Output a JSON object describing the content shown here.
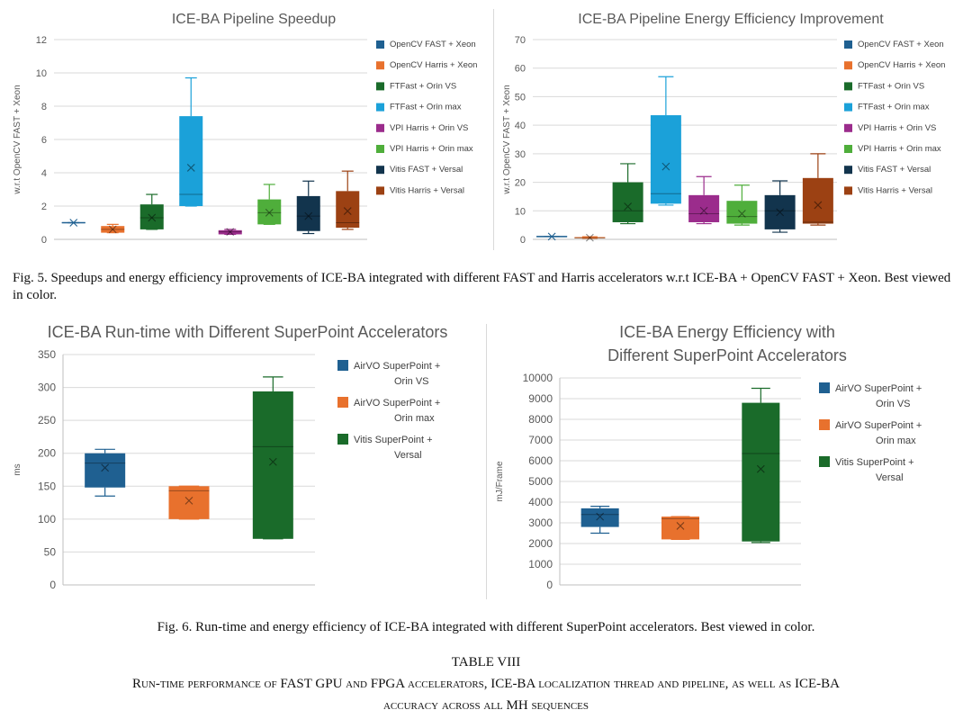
{
  "chart_data": [
    {
      "type": "boxplot",
      "title": "ICE-BA Pipeline Speedup",
      "xlabel": "",
      "ylabel": "w.r.t OpenCV FAST + Xeon",
      "ylim": [
        0,
        12
      ],
      "yticks": [
        0,
        2,
        4,
        6,
        8,
        10,
        12
      ],
      "legend_position": "right",
      "series": [
        {
          "name": "OpenCV FAST + Xeon",
          "color": "#1f6091",
          "min": 1.0,
          "q1": 1.0,
          "median": 1.0,
          "q3": 1.0,
          "max": 1.0,
          "mean": 1.0
        },
        {
          "name": "OpenCV Harris + Xeon",
          "color": "#e8712d",
          "min": 0.4,
          "q1": 0.4,
          "median": 0.6,
          "q3": 0.8,
          "max": 0.9,
          "mean": 0.6
        },
        {
          "name": "FTFast + Orin VS",
          "color": "#1a6b2a",
          "min": 0.6,
          "q1": 0.6,
          "median": 1.3,
          "q3": 2.1,
          "max": 2.7,
          "mean": 1.3
        },
        {
          "name": "FTFast + Orin max",
          "color": "#1ba1d9",
          "min": 2.0,
          "q1": 2.0,
          "median": 2.7,
          "q3": 7.4,
          "max": 9.7,
          "mean": 4.3
        },
        {
          "name": "VPI Harris + Orin VS",
          "color": "#9b2c8c",
          "min": 0.3,
          "q1": 0.3,
          "median": 0.45,
          "q3": 0.55,
          "max": 0.6,
          "mean": 0.45
        },
        {
          "name": "VPI Harris + Orin max",
          "color": "#4fae3b",
          "min": 0.9,
          "q1": 0.9,
          "median": 1.6,
          "q3": 2.4,
          "max": 3.3,
          "mean": 1.6
        },
        {
          "name": "Vitis FAST + Versal",
          "color": "#12344d",
          "min": 0.35,
          "q1": 0.5,
          "median": 1.4,
          "q3": 2.6,
          "max": 3.5,
          "mean": 1.4
        },
        {
          "name": "Vitis Harris + Versal",
          "color": "#9c4113",
          "min": 0.6,
          "q1": 0.7,
          "median": 1.0,
          "q3": 2.9,
          "max": 4.1,
          "mean": 1.7
        }
      ]
    },
    {
      "type": "boxplot",
      "title": "ICE-BA Pipeline Energy Efficiency Improvement",
      "xlabel": "",
      "ylabel": "w.r.t OpenCV FAST + Xeon",
      "ylim": [
        0,
        70
      ],
      "yticks": [
        0,
        10,
        20,
        30,
        40,
        50,
        60,
        70
      ],
      "legend_position": "right",
      "series": [
        {
          "name": "OpenCV FAST + Xeon",
          "color": "#1f6091",
          "min": 1,
          "q1": 1,
          "median": 1,
          "q3": 1,
          "max": 1,
          "mean": 1
        },
        {
          "name": "OpenCV Harris + Xeon",
          "color": "#e8712d",
          "min": 0.4,
          "q1": 0.4,
          "median": 0.5,
          "q3": 0.8,
          "max": 0.9,
          "mean": 0.6
        },
        {
          "name": "FTFast + Orin VS",
          "color": "#1a6b2a",
          "min": 5.5,
          "q1": 6,
          "median": 10,
          "q3": 20,
          "max": 26.5,
          "mean": 11.5
        },
        {
          "name": "FTFast + Orin max",
          "color": "#1ba1d9",
          "min": 12,
          "q1": 12.5,
          "median": 16,
          "q3": 43.5,
          "max": 57,
          "mean": 25.5
        },
        {
          "name": "VPI Harris + Orin VS",
          "color": "#9b2c8c",
          "min": 5.5,
          "q1": 6,
          "median": 9,
          "q3": 15.5,
          "max": 22,
          "mean": 10
        },
        {
          "name": "VPI Harris + Orin max",
          "color": "#4fae3b",
          "min": 5,
          "q1": 5.5,
          "median": 8,
          "q3": 13.5,
          "max": 19,
          "mean": 9
        },
        {
          "name": "Vitis FAST + Versal",
          "color": "#12344d",
          "min": 2.5,
          "q1": 3.5,
          "median": 10,
          "q3": 15.5,
          "max": 20.5,
          "mean": 9.5
        },
        {
          "name": "Vitis Harris + Versal",
          "color": "#9c4113",
          "min": 5,
          "q1": 5.5,
          "median": 6,
          "q3": 21.5,
          "max": 30,
          "mean": 12
        }
      ]
    },
    {
      "type": "boxplot",
      "title": "ICE-BA Run-time with Different SuperPoint Accelerators",
      "xlabel": "",
      "ylabel": "ms",
      "ylim": [
        0,
        350
      ],
      "yticks": [
        0,
        50,
        100,
        150,
        200,
        250,
        300,
        350
      ],
      "legend_position": "right",
      "series": [
        {
          "name": "AirVO SuperPoint + Orin VS",
          "color": "#1f6091",
          "min": 135,
          "q1": 148,
          "median": 185,
          "q3": 200,
          "max": 206,
          "mean": 178
        },
        {
          "name": "AirVO SuperPoint + Orin max",
          "color": "#e8712d",
          "min": 100,
          "q1": 100,
          "median": 143,
          "q3": 150,
          "max": 150,
          "mean": 128
        },
        {
          "name": "Vitis SuperPoint + Versal",
          "color": "#1a6b2a",
          "min": 70,
          "q1": 70,
          "median": 210,
          "q3": 294,
          "max": 316,
          "mean": 187
        }
      ]
    },
    {
      "type": "boxplot",
      "title": "ICE-BA Energy Efficiency with Different SuperPoint Accelerators",
      "xlabel": "",
      "ylabel": "mJ/Frame",
      "ylim": [
        0,
        10000
      ],
      "yticks": [
        0,
        1000,
        2000,
        3000,
        4000,
        5000,
        6000,
        7000,
        8000,
        9000,
        10000
      ],
      "legend_position": "right",
      "series": [
        {
          "name": "AirVO SuperPoint + Orin VS",
          "color": "#1f6091",
          "min": 2500,
          "q1": 2800,
          "median": 3400,
          "q3": 3700,
          "max": 3800,
          "mean": 3300
        },
        {
          "name": "AirVO SuperPoint + Orin max",
          "color": "#e8712d",
          "min": 2200,
          "q1": 2200,
          "median": 3200,
          "q3": 3300,
          "max": 3300,
          "mean": 2850
        },
        {
          "name": "Vitis SuperPoint + Versal",
          "color": "#1a6b2a",
          "min": 2050,
          "q1": 2100,
          "median": 6350,
          "q3": 8800,
          "max": 9500,
          "mean": 5600
        }
      ]
    }
  ],
  "captions": {
    "fig5": "Fig. 5.   Speedups and energy efficiency improvements of ICE-BA integrated with different FAST and Harris accelerators w.r.t ICE-BA + OpenCV FAST + Xeon. Best viewed in color.",
    "fig6": "Fig. 6.   Run-time and energy efficiency of ICE-BA integrated with different SuperPoint accelerators. Best viewed in color."
  },
  "table": {
    "number": "TABLE VIII",
    "title_line1": "Run-time performance of FAST GPU and FPGA accelerators, ICE-BA localization thread and pipeline, as well as ICE-BA",
    "title_line2": "accuracy across all MH sequences"
  }
}
